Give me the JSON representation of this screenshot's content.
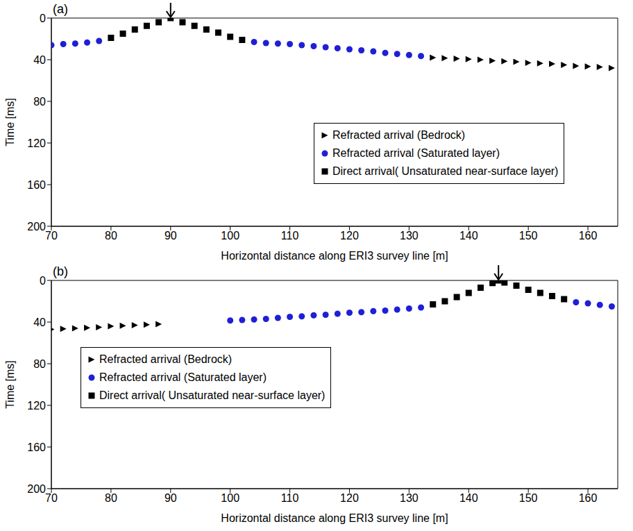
{
  "chart_data": [
    {
      "type": "scatter",
      "panel": "(a)",
      "source": 90,
      "legend": "lower right",
      "x_label": "Horizontal distance along ERI3 survey line [m]",
      "y_label": "Time [ms]",
      "xlim": [
        70,
        165
      ],
      "xticks": [
        70,
        80,
        90,
        100,
        110,
        120,
        130,
        140,
        150,
        160
      ],
      "ylim": [
        0,
        200
      ],
      "yticks": [
        0,
        40,
        80,
        120,
        160,
        200
      ],
      "series": [
        {
          "name": "Refracted arrival (Bedrock)",
          "color": "#000000",
          "marker": "triangle",
          "x": [
            134,
            136,
            138,
            140,
            142,
            144,
            146,
            148,
            150,
            152,
            154,
            156,
            158,
            160,
            162,
            164
          ],
          "values": [
            38,
            38.5,
            39,
            39.5,
            40,
            41,
            41.5,
            42,
            43,
            43.5,
            44,
            45,
            46,
            46.5,
            47,
            48
          ]
        },
        {
          "name": "Refracted arrival (Saturated layer)",
          "color": "#1f1fd6",
          "marker": "circle",
          "x": [
            70,
            72,
            74,
            76,
            78,
            104,
            106,
            108,
            110,
            112,
            114,
            116,
            118,
            120,
            122,
            124,
            126,
            128,
            130,
            132
          ],
          "values": [
            26,
            25,
            24.5,
            23.5,
            22,
            23,
            24,
            24.5,
            25,
            26,
            27,
            28,
            29,
            30,
            31,
            32,
            33.5,
            34.5,
            35.5,
            36.5
          ]
        },
        {
          "name": "Direct arrival( Unsaturated near-surface layer)",
          "color": "#000000",
          "marker": "square",
          "x": [
            80,
            82,
            84,
            86,
            88,
            90,
            92,
            94,
            96,
            98,
            100,
            102
          ],
          "values": [
            19,
            15,
            11,
            7.5,
            4,
            0,
            4,
            7.5,
            11,
            14,
            18,
            21
          ]
        }
      ]
    },
    {
      "type": "scatter",
      "panel": "(b)",
      "source": 145,
      "legend": "lower left",
      "x_label": "Horizontal distance along ERI3 survey line [m]",
      "y_label": "Time [ms]",
      "xlim": [
        70,
        165
      ],
      "xticks": [
        70,
        80,
        90,
        100,
        110,
        120,
        130,
        140,
        150,
        160
      ],
      "ylim": [
        0,
        200
      ],
      "yticks": [
        0,
        40,
        80,
        120,
        160,
        200
      ],
      "series": [
        {
          "name": "Refracted arrival (Bedrock)",
          "color": "#000000",
          "marker": "triangle",
          "x": [
            70,
            72,
            74,
            76,
            78,
            80,
            82,
            84,
            86,
            88
          ],
          "values": [
            47,
            46.5,
            46,
            45.5,
            45,
            44,
            43.5,
            43,
            42.5,
            42
          ]
        },
        {
          "name": "Refracted arrival (Saturated layer)",
          "color": "#1f1fd6",
          "marker": "circle",
          "x": [
            100,
            102,
            104,
            106,
            108,
            110,
            112,
            114,
            116,
            118,
            120,
            122,
            124,
            126,
            128,
            130,
            132,
            158,
            160,
            162,
            164
          ],
          "values": [
            38.5,
            38,
            37.5,
            37,
            36,
            35,
            34.5,
            33.5,
            33,
            32,
            31,
            30.5,
            29.5,
            29,
            28,
            27,
            26,
            21,
            22,
            23.5,
            25
          ]
        },
        {
          "name": "Direct arrival( Unsaturated near-surface layer)",
          "color": "#000000",
          "marker": "square",
          "x": [
            134,
            136,
            138,
            140,
            142,
            144,
            145,
            146,
            148,
            150,
            152,
            154,
            156
          ],
          "values": [
            23,
            20,
            16,
            12,
            7,
            2.5,
            0,
            2,
            5,
            9,
            12,
            15,
            18
          ]
        }
      ]
    }
  ]
}
